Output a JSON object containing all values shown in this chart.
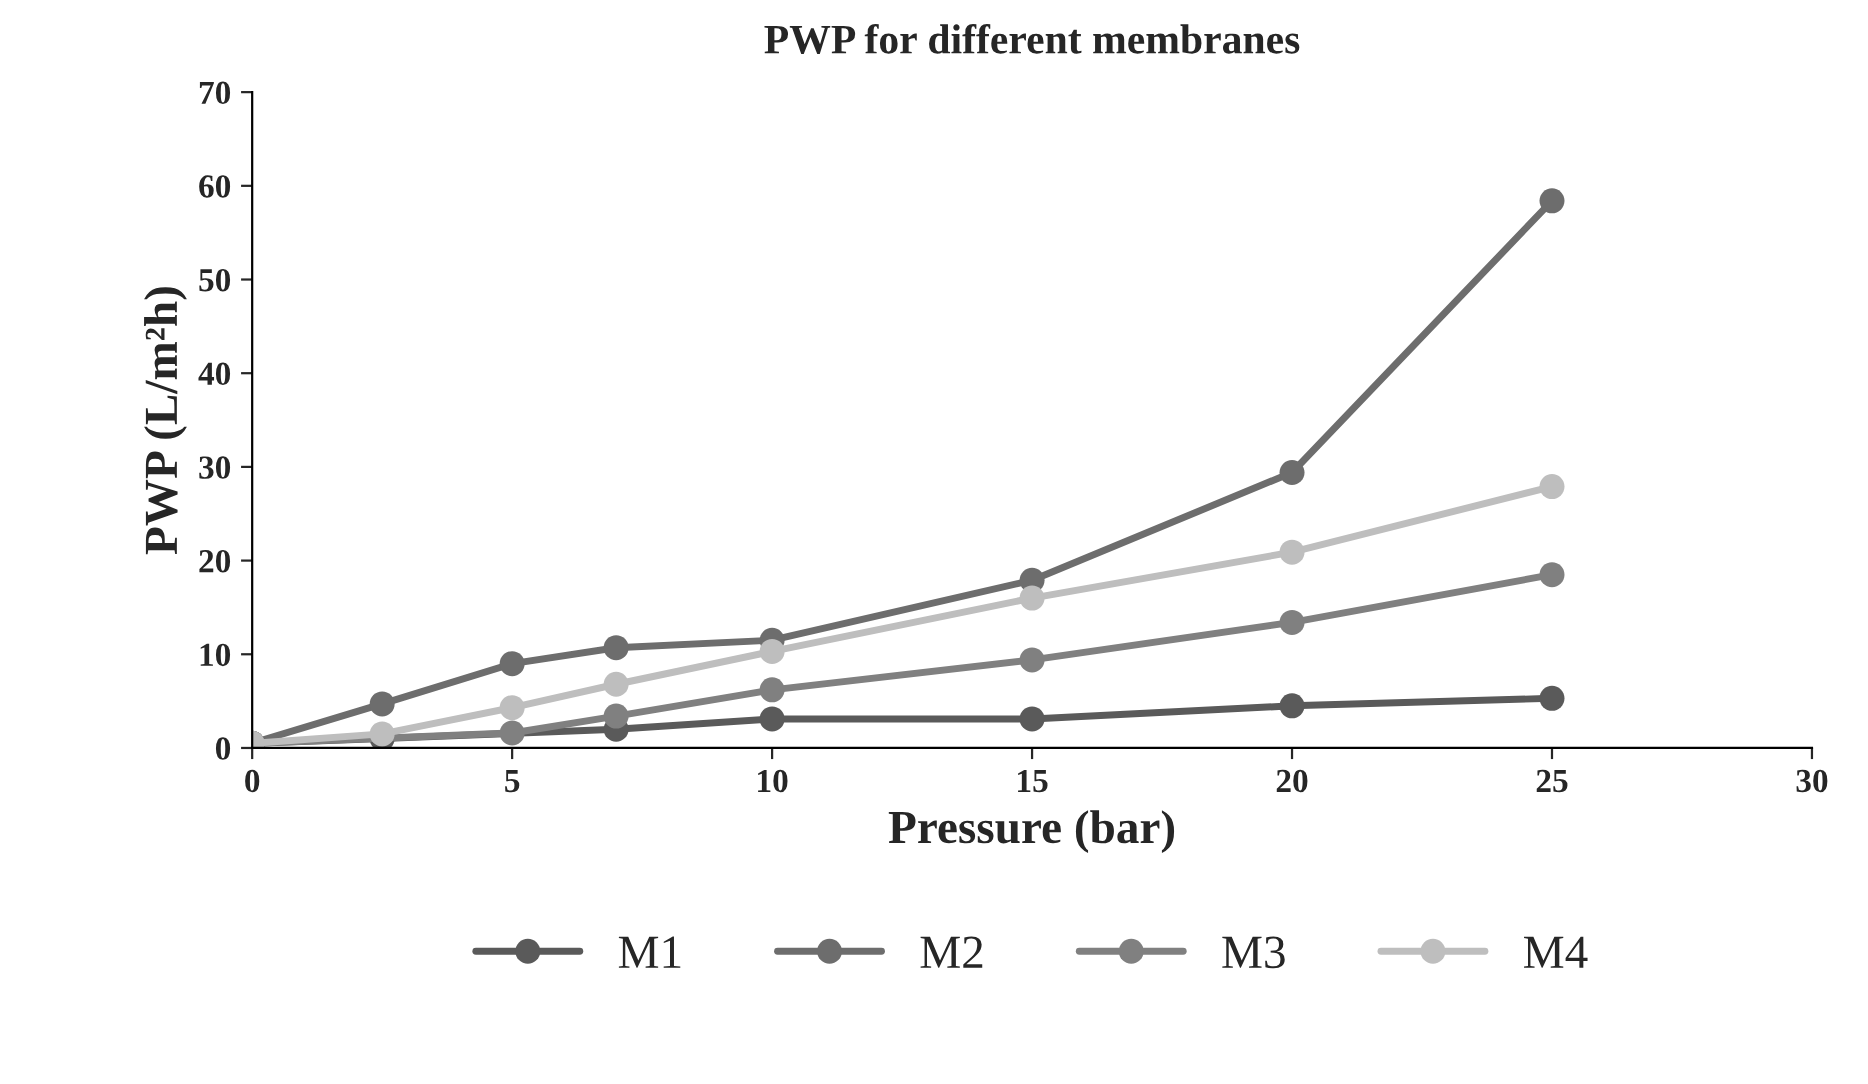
{
  "chart_data": {
    "type": "line",
    "title": "PWP for different membranes",
    "xlabel": "Pressure (bar)",
    "ylabel": "PWP (L/m²h)",
    "x": [
      0,
      2.5,
      5,
      7,
      10,
      15,
      20,
      25
    ],
    "series": [
      {
        "name": "M1",
        "color": "#5a5a5a",
        "values": [
          0.5,
          1.0,
          null,
          2.0,
          3.1,
          3.1,
          4.5,
          5.3
        ]
      },
      {
        "name": "M2",
        "color": "#6d6d6d",
        "values": [
          0.5,
          4.7,
          9.0,
          10.7,
          11.5,
          17.9,
          29.4,
          58.4
        ]
      },
      {
        "name": "M3",
        "color": "#808080",
        "values": [
          0.5,
          null,
          1.6,
          3.4,
          6.2,
          9.4,
          13.4,
          18.5
        ]
      },
      {
        "name": "M4",
        "color": "#bebebe",
        "values": [
          0.5,
          1.5,
          4.3,
          6.8,
          10.3,
          16.0,
          20.9,
          27.9
        ]
      }
    ],
    "xlim": [
      0,
      30
    ],
    "xticks": [
      0,
      5,
      10,
      15,
      20,
      25,
      30
    ],
    "ylim": [
      0,
      70
    ],
    "yticks": [
      0,
      10,
      20,
      30,
      40,
      50,
      60,
      70
    ],
    "grid": false,
    "legend": "bottom",
    "marker": "circle",
    "line_style": "solid"
  }
}
